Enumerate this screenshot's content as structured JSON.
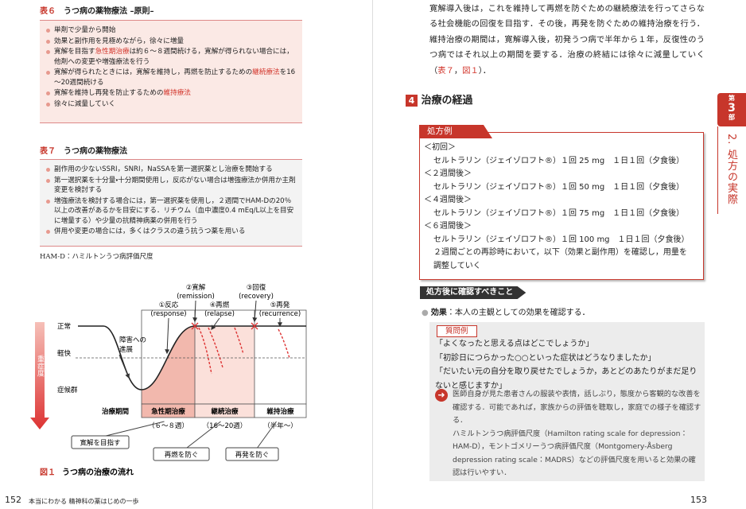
{
  "left_page": {
    "table6": {
      "label": "表６",
      "title": "うつ病の薬物療法 –原則–",
      "items": [
        [
          "単剤で少量から開始"
        ],
        [
          "効果と副作用を見極めながら，徐々に増量"
        ],
        [
          "寛解を目指す",
          {
            "em": "急性期治療"
          },
          "は約６～８週間続ける，寛解が得られない場合には，他剤への変更や増強療法を行う"
        ],
        [
          "寛解が得られたときには，寛解を維持し，再燃を防止するための",
          {
            "em": "継続療法"
          },
          "を16～20週間続ける"
        ],
        [
          "寛解を維持し再発を防止するための",
          {
            "em": "維持療法"
          }
        ],
        [
          "徐々に減量していく"
        ]
      ]
    },
    "table7": {
      "label": "表７",
      "title": "うつ病の薬物療法",
      "items": [
        [
          "副作用の少ないSSRI，SNRI，NaSSAを第一選択薬とし治療を開始する"
        ],
        [
          "第一選択薬を十分量・十分期間使用し，反応がない場合は増強療法か併用か主剤変更を検討する"
        ],
        [
          "増強療法を検討する場合には，第一選択薬を使用し，２週間でHAM-Dの20％以上の改善があるかを目安にする．リチウム（血中濃度0.4 mEq/L以上を目安に増量する）や少量の抗精神病薬の併用を行う"
        ],
        [
          "併用や変更の場合には，多くはクラスの違う抗うつ薬を用いる"
        ]
      ]
    },
    "note": "HAM-D：ハミルトンうつ病評価尺度",
    "figure": {
      "label": "図１",
      "title": "うつ病の治療の流れ",
      "axis_label": "重症度",
      "levels": [
        "正常",
        "軽快",
        "症候群"
      ],
      "progression": [
        "障害への",
        "進展"
      ],
      "events": [
        {
          "name": "①反応",
          "term": "(response)"
        },
        {
          "name": "②寛解",
          "term": "(remission)"
        },
        {
          "name": "③回復",
          "term": "(recovery)"
        },
        {
          "name": "④再燃",
          "term": "(relapse)"
        },
        {
          "name": "⑤再発",
          "term": "(recurrence)"
        }
      ],
      "period_label": "治療期間",
      "phases": [
        {
          "name": "急性期治療",
          "duration": "（６～８週）",
          "goal": "寛解を目指す"
        },
        {
          "name": "継続治療",
          "duration": "（16～20週）",
          "goal": "再燃を防ぐ"
        },
        {
          "name": "維持治療",
          "duration": "（半年～）",
          "goal": "再発を防ぐ"
        }
      ]
    },
    "footer": {
      "page": "152",
      "book": "本当にわかる 精神科の薬はじめの一歩"
    }
  },
  "right_page": {
    "paragraph": [
      "寛解導入後は，これを維持して再燃を防ぐための継続療法を行ってさらなる社会機能の回復を目指す．その後，再発を防ぐための維持治療を行う．維持治療の期間は，寛解導入後，初発うつ病で半年から１年，反復性のうつ病ではそれ以上の期間を要する．治療の終結には徐々に減量していく（",
      {
        "em": "表７"
      },
      "，",
      {
        "em": "図１"
      },
      "）．"
    ],
    "section": {
      "number": "4",
      "title": "治療の経過"
    },
    "prescription": {
      "label": "処方例",
      "steps": [
        {
          "heading": "＜初回＞",
          "line": "セルトラリン（ジェイゾロフト®）１回 25 mg　１日１回（夕食後）"
        },
        {
          "heading": "＜２週間後＞",
          "line": "セルトラリン（ジェイゾロフト®）１回 50 mg　１日１回（夕食後）"
        },
        {
          "heading": "＜４週間後＞",
          "line": "セルトラリン（ジェイゾロフト®）１回 75 mg　１日１回（夕食後）"
        },
        {
          "heading": "＜６週間後＞",
          "line": "セルトラリン（ジェイゾロフト®）１回 100 mg　１日１回（夕食後）"
        }
      ],
      "note": "２週間ごとの再診時において，以下（効果と副作用）を確認し，用量を調整していく"
    },
    "check": {
      "heading": "処方後に確認すべきこと",
      "effect_label": "効果",
      "effect_text": "：本人の主観としての効果を確認する．"
    },
    "questions": {
      "label": "質問例",
      "items": [
        "「よくなったと思える点はどこでしょうか」",
        "「初診日につらかった○○といった症状はどうなりましたか」",
        "「だいたい元の自分を取り戻せたでしょうか，あとどのあたりがまだ足りないと感じますか」"
      ],
      "observation": "医師自身が見た患者さんの服装や表情，話しぶり，態度から客観的な改善を確認する．可能であれば，家族からの評価を聴取し，家庭での様子を確認する．",
      "scales": "ハミルトンうつ病評価尺度（Hamilton rating scale for depression：HAM-D），モントゴメリーうつ病評価尺度（Montgomery-Åsberg depression rating scale：MADRS）などの評価尺度を用いると効果の確認は行いやすい．"
    },
    "side_tab": {
      "part": [
        "第",
        "3",
        "部"
      ],
      "section": "2. 処方の実際"
    },
    "footer": {
      "page": "153"
    }
  }
}
